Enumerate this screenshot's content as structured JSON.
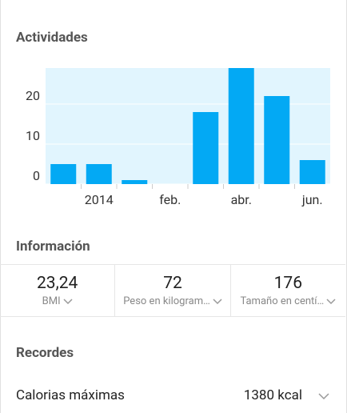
{
  "activities": {
    "title": "Actividades",
    "chart_data": {
      "type": "bar",
      "categories": [
        null,
        "2014",
        null,
        "feb.",
        null,
        "abr.",
        null,
        "jun."
      ],
      "values": [
        5,
        5,
        1,
        0,
        18,
        29,
        22,
        6
      ],
      "color": "#03a9f4",
      "background": "#e1f5fe",
      "ylim": [
        0,
        29
      ],
      "yticks": [
        0,
        10,
        20
      ],
      "grid": true
    }
  },
  "info": {
    "title": "Información",
    "cells": [
      {
        "value": "23,24",
        "label": "BMI"
      },
      {
        "value": 72,
        "label": "Peso en kilogram…"
      },
      {
        "value": 176,
        "label": "Tamaño en centí…"
      }
    ]
  },
  "records": {
    "title": "Recordes",
    "rows": [
      {
        "label": "Calorias máximas",
        "value": "1380 kcal"
      }
    ]
  }
}
